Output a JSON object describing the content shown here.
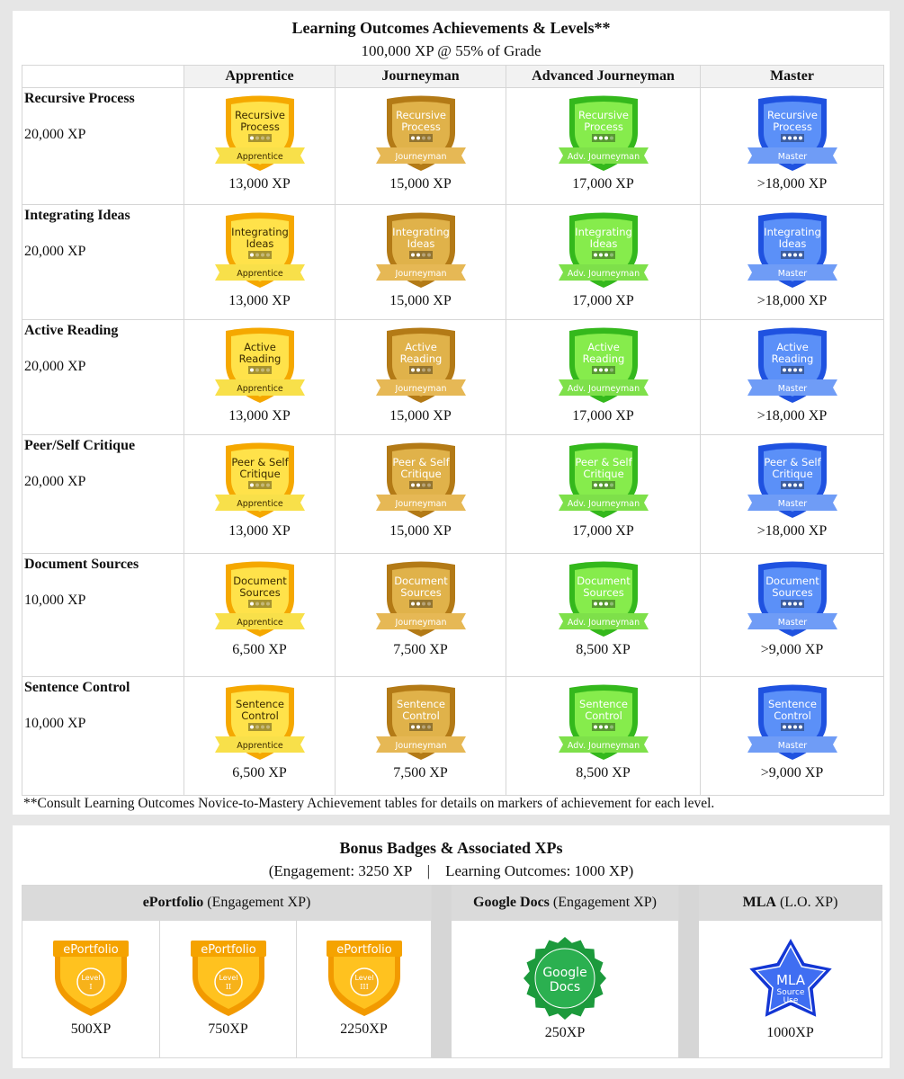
{
  "achievements": {
    "title": "Learning Outcomes Achievements & Levels**",
    "subtitle": "100,000 XP @ 55% of Grade",
    "columns": [
      "Apprentice",
      "Journeyman",
      "Advanced Journeyman",
      "Master"
    ],
    "ribbons": [
      "Apprentice",
      "Journeyman",
      "Adv. Journeyman",
      "Master"
    ],
    "rows": [
      {
        "name": "Recursive Process",
        "xp": "20,000 XP",
        "badge_line1": "Recursive",
        "badge_line2": "Process",
        "levels": [
          "13,000 XP",
          "15,000 XP",
          "17,000 XP",
          ">18,000 XP"
        ]
      },
      {
        "name": "Integrating Ideas",
        "xp": "20,000 XP",
        "badge_line1": "Integrating",
        "badge_line2": "Ideas",
        "levels": [
          "13,000 XP",
          "15,000 XP",
          "17,000 XP",
          ">18,000 XP"
        ]
      },
      {
        "name": "Active Reading",
        "xp": "20,000 XP",
        "badge_line1": "Active",
        "badge_line2": "Reading",
        "levels": [
          "13,000 XP",
          "15,000 XP",
          "17,000 XP",
          ">18,000 XP"
        ]
      },
      {
        "name": "Peer/Self Critique",
        "xp": "20,000 XP",
        "badge_line1": "Peer & Self",
        "badge_line2": "Critique",
        "levels": [
          "13,000 XP",
          "15,000 XP",
          "17,000 XP",
          ">18,000 XP"
        ]
      },
      {
        "name": "Document Sources",
        "xp": "10,000 XP",
        "badge_line1": "Document",
        "badge_line2": "Sources",
        "levels": [
          "6,500 XP",
          "7,500 XP",
          "8,500 XP",
          ">9,000 XP"
        ]
      },
      {
        "name": "Sentence Control",
        "xp": "10,000 XP",
        "badge_line1": "Sentence",
        "badge_line2": "Control",
        "levels": [
          "6,500 XP",
          "7,500 XP",
          "8,500 XP",
          ">9,000 XP"
        ]
      }
    ],
    "footnote": "**Consult Learning Outcomes Novice-to-Mastery Achievement tables for details on markers of achievement for each level."
  },
  "bonus": {
    "title": "Bonus Badges & Associated XPs",
    "subtitle": "(Engagement: 3250 XP    |    Learning Outcomes: 1000 XP)",
    "headers": {
      "eportfolio": {
        "name": "ePortfolio",
        "suffix": " (Engagement XP)"
      },
      "gdocs": {
        "name": "Google Docs",
        "suffix": " (Engagement XP)"
      },
      "mla": {
        "name": "MLA",
        "suffix": " (L.O. XP)"
      }
    },
    "eportfolio": {
      "badge_title": "ePortfolio",
      "badge_level": "Level",
      "items": [
        {
          "numeral": "I",
          "xp": "500XP"
        },
        {
          "numeral": "II",
          "xp": "750XP"
        },
        {
          "numeral": "III",
          "xp": "2250XP"
        }
      ]
    },
    "gdocs": {
      "line1": "Google",
      "line2": "Docs",
      "xp": "250XP"
    },
    "mla": {
      "line1": "MLA",
      "line2": "Source",
      "line3": "Use",
      "xp": "1000XP"
    }
  },
  "colors": {
    "apprentice": "#f5a800",
    "apprentice_light": "#ffe24a",
    "journeyman": "#b37a16",
    "journeyman_light": "#e0b24a",
    "advanced": "#34b81c",
    "advanced_light": "#86ec4c",
    "master": "#1f52e0",
    "master_light": "#5b90f8",
    "gdocs": "#1c9a3c",
    "mla": "#1336d4"
  }
}
